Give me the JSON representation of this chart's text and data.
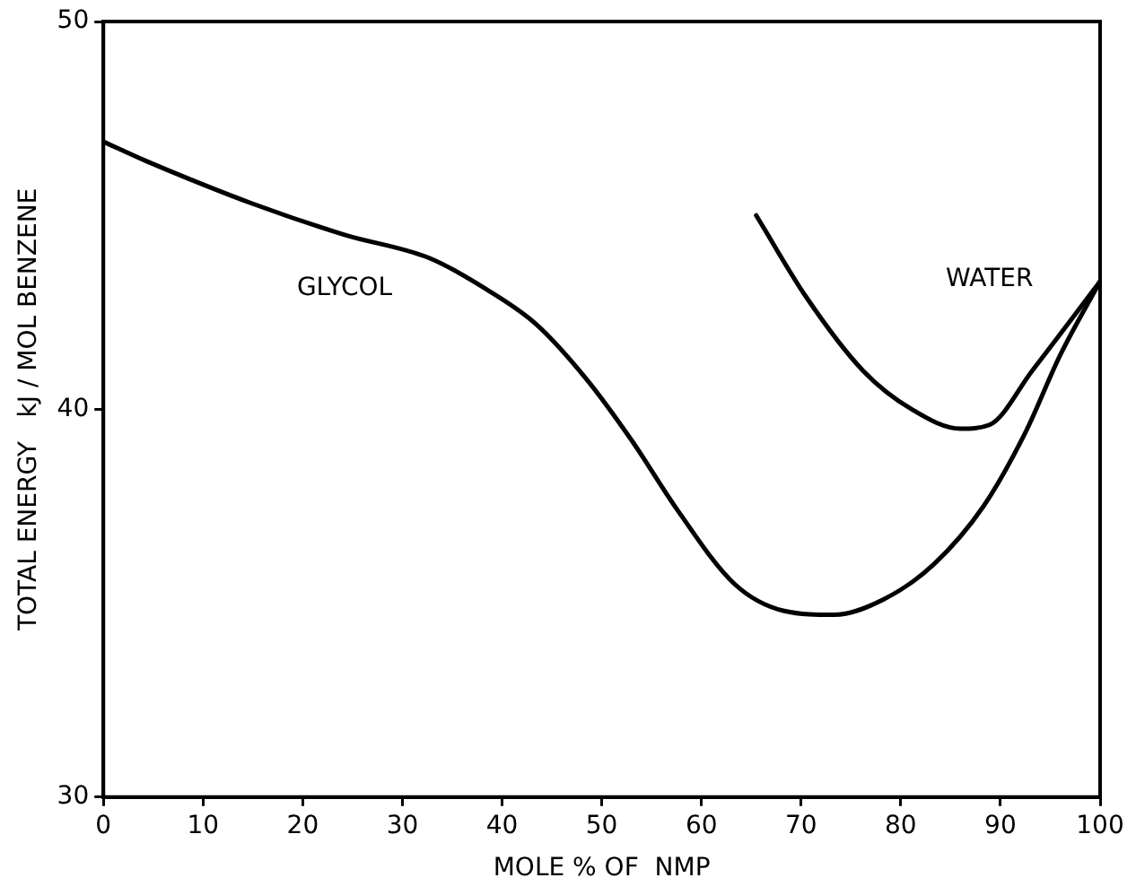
{
  "chart_data": {
    "type": "line",
    "xlabel": "MOLE % OF  NMP",
    "ylabel": "TOTAL ENERGY   kJ / MOL BENZENE",
    "xlim": [
      0,
      100
    ],
    "xticks": [
      0,
      10,
      20,
      30,
      40,
      50,
      60,
      70,
      80,
      90,
      100
    ],
    "ylim": [
      30,
      50
    ],
    "yticks": [
      30,
      40,
      50
    ],
    "grid": false,
    "legend": false,
    "marker": "none",
    "line_style": "solid",
    "series": [
      {
        "name": "GLYCOL",
        "color": "#000000",
        "x": [
          0,
          4.3,
          15,
          24.2,
          32.7,
          38.4,
          43.4,
          48.4,
          53,
          57.6,
          63.3,
          68.3,
          73.3,
          78.3,
          83.3,
          88.3,
          92.5,
          96,
          100
        ],
        "values": [
          46.9,
          46.4,
          45.3,
          44.5,
          43.9,
          43.1,
          42.2,
          40.8,
          39.2,
          37.4,
          35.5,
          34.8,
          34.7,
          35.1,
          36.0,
          37.5,
          39.4,
          41.4,
          43.3
        ]
      },
      {
        "name": "WATER",
        "color": "#000000",
        "x": [
          65.5,
          70.5,
          76.2,
          81.1,
          86,
          88.9,
          93.2,
          100
        ],
        "values": [
          45.0,
          42.9,
          41.0,
          40.0,
          39.5,
          39.6,
          41.0,
          43.3
        ]
      }
    ]
  }
}
